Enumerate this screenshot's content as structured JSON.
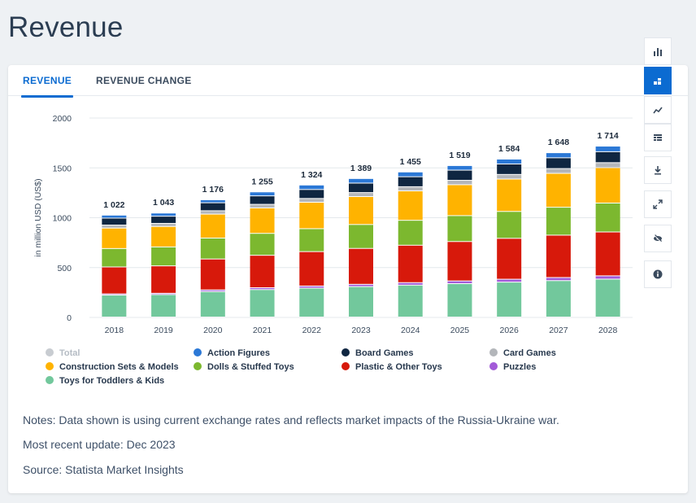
{
  "page": {
    "title": "Revenue"
  },
  "tabs": [
    {
      "label": "REVENUE"
    },
    {
      "label": "REVENUE CHANGE"
    }
  ],
  "toolbar": {
    "icons": [
      "bar-chart-icon",
      "stacked-bar-icon",
      "line-chart-icon",
      "table-icon",
      "download-icon",
      "expand-icon",
      "hide-icon",
      "info-icon"
    ]
  },
  "notes": {
    "line1": "Notes: Data shown is using current exchange rates and reflects market impacts of the Russia-Ukraine war.",
    "line2": "Most recent update: Dec 2023",
    "line3": "Source: Statista Market Insights"
  },
  "colors": {
    "accent": "#0b6bd1"
  },
  "chart_data": {
    "type": "bar",
    "stacked": true,
    "ylabel": "in million USD (US$)",
    "ylim": [
      0,
      2000
    ],
    "yticks": [
      0,
      500,
      1000,
      1500,
      2000
    ],
    "grid": true,
    "legend_position": "bottom",
    "categories": [
      "2018",
      "2019",
      "2020",
      "2021",
      "2022",
      "2023",
      "2024",
      "2025",
      "2026",
      "2027",
      "2028"
    ],
    "totals": [
      1022,
      1043,
      1176,
      1255,
      1324,
      1389,
      1455,
      1519,
      1584,
      1648,
      1714
    ],
    "total_labels": [
      "1 022",
      "1 043",
      "1 176",
      "1 255",
      "1 324",
      "1 389",
      "1 455",
      "1 519",
      "1 584",
      "1 648",
      "1 714"
    ],
    "legend": [
      {
        "name": "Total",
        "color": "#c8ccd1",
        "muted": true
      },
      {
        "name": "Action Figures",
        "color": "#2b78d6"
      },
      {
        "name": "Board Games",
        "color": "#0f2641"
      },
      {
        "name": "Card Games",
        "color": "#b3b6ba"
      },
      {
        "name": "Construction Sets & Models",
        "color": "#ffb300"
      },
      {
        "name": "Dolls & Stuffed Toys",
        "color": "#7cb82f"
      },
      {
        "name": "Plastic & Other Toys",
        "color": "#d7190b"
      },
      {
        "name": "Puzzles",
        "color": "#a25ad8"
      },
      {
        "name": "Toys for Toddlers & Kids",
        "color": "#72c89c"
      }
    ],
    "series": [
      {
        "name": "Toys for Toddlers & Kids",
        "color": "#72c89c",
        "values": [
          220,
          225,
          255,
          275,
          290,
          305,
          320,
          335,
          350,
          365,
          380
        ]
      },
      {
        "name": "Puzzles",
        "color": "#a25ad8",
        "values": [
          12,
          13,
          17,
          19,
          21,
          23,
          25,
          27,
          29,
          31,
          33
        ]
      },
      {
        "name": "Plastic & Other Toys",
        "color": "#d7190b",
        "values": [
          270,
          275,
          310,
          325,
          345,
          360,
          375,
          395,
          410,
          425,
          440
        ]
      },
      {
        "name": "Dolls & Stuffed Toys",
        "color": "#7cb82f",
        "values": [
          185,
          190,
          210,
          220,
          230,
          240,
          250,
          260,
          270,
          280,
          290
        ]
      },
      {
        "name": "Construction Sets & Models",
        "color": "#ffb300",
        "values": [
          205,
          205,
          240,
          255,
          265,
          280,
          295,
          310,
          325,
          340,
          355
        ]
      },
      {
        "name": "Card Games",
        "color": "#b3b6ba",
        "values": [
          30,
          31,
          34,
          36,
          38,
          40,
          42,
          44,
          46,
          48,
          50
        ]
      },
      {
        "name": "Board Games",
        "color": "#0f2641",
        "values": [
          70,
          72,
          80,
          85,
          90,
          95,
          100,
          102,
          105,
          108,
          110
        ]
      },
      {
        "name": "Action Figures",
        "color": "#2b78d6",
        "values": [
          30,
          32,
          30,
          40,
          45,
          46,
          48,
          46,
          49,
          51,
          56
        ]
      }
    ]
  }
}
